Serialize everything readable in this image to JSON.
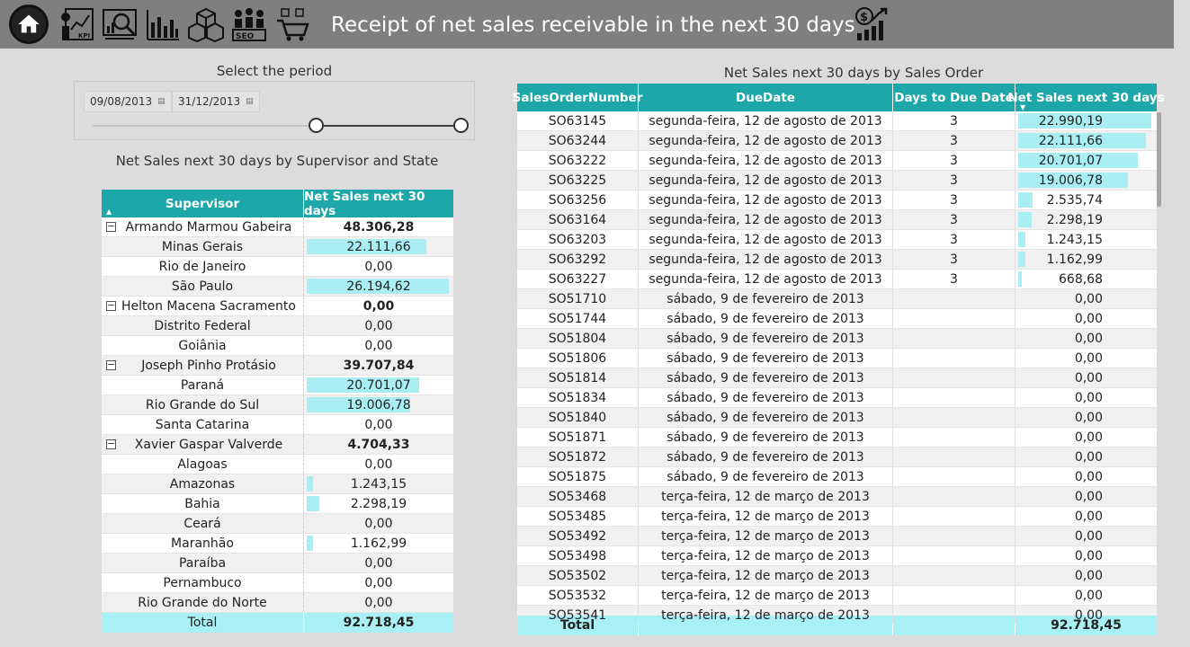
{
  "header": {
    "title": "Receipt of net sales receivable in the next 30 days",
    "nav_icons": [
      "home-icon",
      "kpi-icon",
      "analysis-icon",
      "bar-chart-icon",
      "boxes-icon",
      "seo-icon",
      "cart-icon",
      "money-growth-icon"
    ],
    "background": "#7f7f7f"
  },
  "slicer": {
    "title": "Select the period",
    "start_date": "09/08/2013",
    "end_date": "31/12/2013"
  },
  "left_table": {
    "title": "Net Sales next 30 days by Supervisor and State",
    "columns": [
      "Supervisor",
      "Net Sales next 30 days"
    ],
    "rows": [
      {
        "type": "sup",
        "label": "Armando Marmou Gabeira",
        "value": "48.306,28",
        "bar": 0
      },
      {
        "type": "state",
        "label": "Minas Gerais",
        "value": "22.111,66",
        "bar": 0.844
      },
      {
        "type": "state",
        "label": "Rio de Janeiro",
        "value": "0,00",
        "bar": 0
      },
      {
        "type": "state",
        "label": "São Paulo",
        "value": "26.194,62",
        "bar": 1.0
      },
      {
        "type": "sup",
        "label": "Helton Macena Sacramento",
        "value": "0,00",
        "bar": 0
      },
      {
        "type": "state",
        "label": "Distrito Federal",
        "value": "0,00",
        "bar": 0
      },
      {
        "type": "state",
        "label": "Goiânia",
        "value": "0,00",
        "bar": 0
      },
      {
        "type": "sup",
        "label": "Joseph Pinho Protásio",
        "value": "39.707,84",
        "bar": 0
      },
      {
        "type": "state",
        "label": "Paraná",
        "value": "20.701,07",
        "bar": 0.79
      },
      {
        "type": "state",
        "label": "Rio Grande do Sul",
        "value": "19.006,78",
        "bar": 0.726
      },
      {
        "type": "state",
        "label": "Santa Catarina",
        "value": "0,00",
        "bar": 0
      },
      {
        "type": "sup",
        "label": "Xavier Gaspar Valverde",
        "value": "4.704,33",
        "bar": 0
      },
      {
        "type": "state",
        "label": "Alagoas",
        "value": "0,00",
        "bar": 0
      },
      {
        "type": "state",
        "label": "Amazonas",
        "value": "1.243,15",
        "bar": 0.047
      },
      {
        "type": "state",
        "label": "Bahia",
        "value": "2.298,19",
        "bar": 0.088
      },
      {
        "type": "state",
        "label": "Ceará",
        "value": "0,00",
        "bar": 0
      },
      {
        "type": "state",
        "label": "Maranhão",
        "value": "1.162,99",
        "bar": 0.044
      },
      {
        "type": "state",
        "label": "Paraíba",
        "value": "0,00",
        "bar": 0
      },
      {
        "type": "state",
        "label": "Pernambuco",
        "value": "0,00",
        "bar": 0
      },
      {
        "type": "state",
        "label": "Rio Grande do Norte",
        "value": "0,00",
        "bar": 0
      }
    ],
    "total_label": "Total",
    "total_value": "92.718,45"
  },
  "right_table": {
    "title": "Net Sales next 30 days by Sales Order",
    "columns": [
      "SalesOrderNumber",
      "DueDate",
      "Days to Due Date",
      "Net Sales next 30 days"
    ],
    "rows": [
      {
        "order": "SO63145",
        "due": "segunda-feira, 12 de agosto de 2013",
        "days": "3",
        "value": "22.990,19",
        "bar": 1.0
      },
      {
        "order": "SO63244",
        "due": "segunda-feira, 12 de agosto de 2013",
        "days": "3",
        "value": "22.111,66",
        "bar": 0.962
      },
      {
        "order": "SO63222",
        "due": "segunda-feira, 12 de agosto de 2013",
        "days": "3",
        "value": "20.701,07",
        "bar": 0.9
      },
      {
        "order": "SO63225",
        "due": "segunda-feira, 12 de agosto de 2013",
        "days": "3",
        "value": "19.006,78",
        "bar": 0.827
      },
      {
        "order": "SO63256",
        "due": "segunda-feira, 12 de agosto de 2013",
        "days": "3",
        "value": "2.535,74",
        "bar": 0.11
      },
      {
        "order": "SO63164",
        "due": "segunda-feira, 12 de agosto de 2013",
        "days": "3",
        "value": "2.298,19",
        "bar": 0.1
      },
      {
        "order": "SO63203",
        "due": "segunda-feira, 12 de agosto de 2013",
        "days": "3",
        "value": "1.243,15",
        "bar": 0.054
      },
      {
        "order": "SO63292",
        "due": "segunda-feira, 12 de agosto de 2013",
        "days": "3",
        "value": "1.162,99",
        "bar": 0.051
      },
      {
        "order": "SO63227",
        "due": "segunda-feira, 12 de agosto de 2013",
        "days": "3",
        "value": "668,68",
        "bar": 0.029
      },
      {
        "order": "SO51710",
        "due": "sábado, 9 de fevereiro de 2013",
        "days": "",
        "value": "0,00",
        "bar": 0
      },
      {
        "order": "SO51744",
        "due": "sábado, 9 de fevereiro de 2013",
        "days": "",
        "value": "0,00",
        "bar": 0
      },
      {
        "order": "SO51804",
        "due": "sábado, 9 de fevereiro de 2013",
        "days": "",
        "value": "0,00",
        "bar": 0
      },
      {
        "order": "SO51806",
        "due": "sábado, 9 de fevereiro de 2013",
        "days": "",
        "value": "0,00",
        "bar": 0
      },
      {
        "order": "SO51814",
        "due": "sábado, 9 de fevereiro de 2013",
        "days": "",
        "value": "0,00",
        "bar": 0
      },
      {
        "order": "SO51834",
        "due": "sábado, 9 de fevereiro de 2013",
        "days": "",
        "value": "0,00",
        "bar": 0
      },
      {
        "order": "SO51840",
        "due": "sábado, 9 de fevereiro de 2013",
        "days": "",
        "value": "0,00",
        "bar": 0
      },
      {
        "order": "SO51871",
        "due": "sábado, 9 de fevereiro de 2013",
        "days": "",
        "value": "0,00",
        "bar": 0
      },
      {
        "order": "SO51872",
        "due": "sábado, 9 de fevereiro de 2013",
        "days": "",
        "value": "0,00",
        "bar": 0
      },
      {
        "order": "SO51875",
        "due": "sábado, 9 de fevereiro de 2013",
        "days": "",
        "value": "0,00",
        "bar": 0
      },
      {
        "order": "SO53468",
        "due": "terça-feira, 12 de março de 2013",
        "days": "",
        "value": "0,00",
        "bar": 0
      },
      {
        "order": "SO53485",
        "due": "terça-feira, 12 de março de 2013",
        "days": "",
        "value": "0,00",
        "bar": 0
      },
      {
        "order": "SO53492",
        "due": "terça-feira, 12 de março de 2013",
        "days": "",
        "value": "0,00",
        "bar": 0
      },
      {
        "order": "SO53498",
        "due": "terça-feira, 12 de março de 2013",
        "days": "",
        "value": "0,00",
        "bar": 0
      },
      {
        "order": "SO53502",
        "due": "terça-feira, 12 de março de 2013",
        "days": "",
        "value": "0,00",
        "bar": 0
      },
      {
        "order": "SO53532",
        "due": "terça-feira, 12 de março de 2013",
        "days": "",
        "value": "0,00",
        "bar": 0
      },
      {
        "order": "SO53541",
        "due": "terça-feira, 12 de março de 2013",
        "days": "",
        "value": "0,00",
        "bar": 0
      }
    ],
    "total_label": "Total",
    "total_value": "92.718,45"
  },
  "colors": {
    "header_bg": "#7f7f7f",
    "table_header": "#1ea7a9",
    "data_bar": "#a8eef2",
    "total_row": "#a9f0f4",
    "page_bg": "#dcdcdc"
  }
}
